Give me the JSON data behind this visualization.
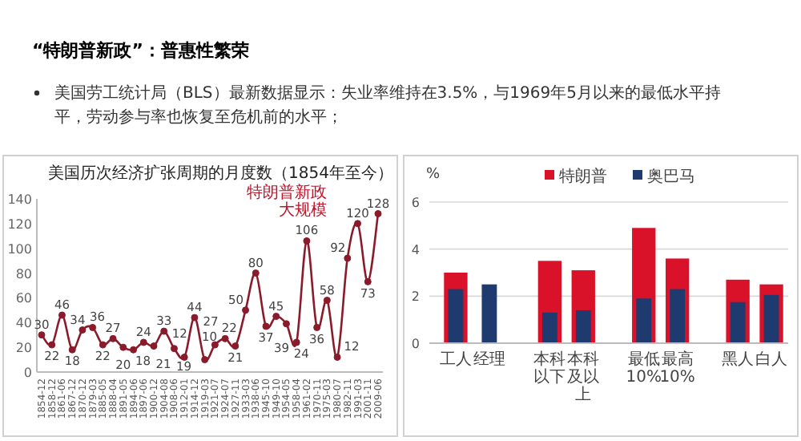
{
  "chart_data": [
    {
      "type": "other",
      "title": "“特朗普新政”：普惠性繁荣",
      "annotations": [
        "美国劳工统计局（BLS）最新数据显示：失业率维持在3.5%，与1969年5月以来的最低水平持平，劳动参与率也恢复至危机前的水平；"
      ]
    },
    {
      "type": "line",
      "title": "美国历次经济扩张周期的月度数（1854年至今）",
      "categories": [
        "1854-12",
        "1858-12",
        "1861-06",
        "1867-12",
        "1870-12",
        "1879-03",
        "1885-05",
        "1888-04",
        "1891-05",
        "1894-06",
        "1897-06",
        "1900-12",
        "1904-08",
        "1908-06",
        "1912-01",
        "1914-12",
        "1919-03",
        "1921-07",
        "1924-07",
        "1927-11",
        "1933-03",
        "1938-06",
        "1945-10",
        "1949-10",
        "1954-05",
        "1958-04",
        "1961-02",
        "1970-11",
        "1975-03",
        "1980-07",
        "1982-11",
        "1991-03",
        "2001-11",
        "2009-06"
      ],
      "values": [
        30,
        22,
        46,
        18,
        34,
        36,
        22,
        27,
        20,
        18,
        24,
        21,
        33,
        19,
        12,
        44,
        10,
        22,
        27,
        21,
        50,
        80,
        37,
        45,
        39,
        24,
        106,
        36,
        58,
        12,
        92,
        120,
        73,
        128
      ],
      "color": "#8b1a2b",
      "marker": "circle",
      "data_labels": true,
      "ylim": [
        0,
        140
      ],
      "yticks": [
        0,
        20,
        40,
        60,
        80,
        100,
        120,
        140
      ],
      "annotations": [
        "特朗普新政",
        "大规模"
      ]
    },
    {
      "type": "bar",
      "categories": [
        "工人",
        "经理",
        "本科以下",
        "本科及以上",
        "最低10%",
        "最高10%",
        "黑人",
        "白人"
      ],
      "ylabel": "%",
      "ylim": [
        0,
        6
      ],
      "yticks": [
        0,
        2,
        4,
        6
      ],
      "grid": "y",
      "legend": "top",
      "series": [
        {
          "name": "特朗普",
          "color": "#d9122a",
          "values": [
            3.0,
            null,
            3.5,
            3.1,
            4.9,
            3.6,
            2.7,
            2.5
          ]
        },
        {
          "name": "奥巴马",
          "color": "#1f3a6e",
          "values": [
            2.3,
            2.5,
            1.3,
            1.4,
            1.9,
            2.3,
            1.75,
            2.05
          ]
        }
      ]
    }
  ]
}
